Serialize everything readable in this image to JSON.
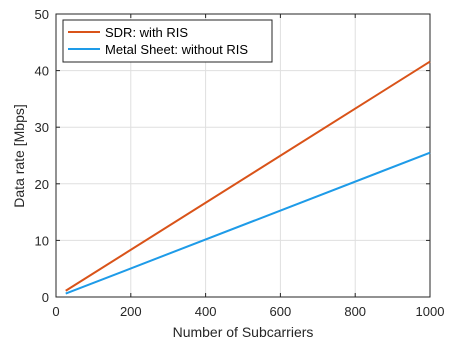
{
  "chart_data": {
    "type": "line",
    "title": "",
    "xlabel": "Number of Subcarriers",
    "ylabel": "Data rate [Mbps]",
    "xlim": [
      0,
      1000
    ],
    "ylim": [
      0,
      50
    ],
    "xticks": [
      0,
      200,
      400,
      600,
      800,
      1000
    ],
    "yticks": [
      0,
      10,
      20,
      30,
      40,
      50
    ],
    "grid": true,
    "legend_position": "top-left",
    "series": [
      {
        "name": "SDR: with RIS",
        "color": "#d95319",
        "x": [
          26,
          1000
        ],
        "y": [
          1.1,
          41.6
        ]
      },
      {
        "name": "Metal Sheet: without RIS",
        "color": "#1e9be8",
        "x": [
          26,
          1000
        ],
        "y": [
          0.6,
          25.5
        ]
      }
    ]
  }
}
